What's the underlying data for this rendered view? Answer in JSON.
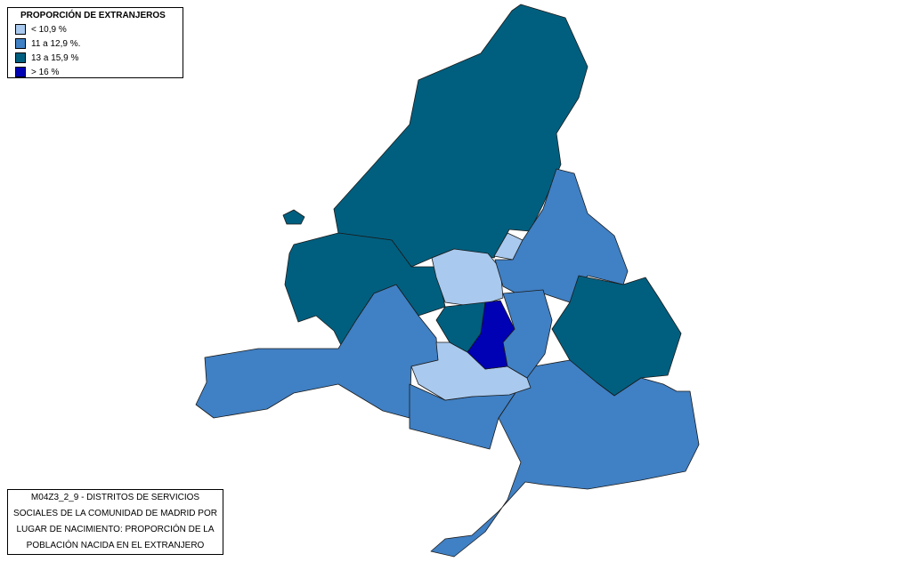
{
  "legend": {
    "title": "PROPORCIÓN DE EXTRANJEROS",
    "items": [
      {
        "label": "< 10,9 %",
        "color": "#a9c9ee"
      },
      {
        "label": "11 a 12,9 %.",
        "color": "#4080c4"
      },
      {
        "label": "13 a 15,9 %",
        "color": "#005f7f"
      },
      {
        "label": "> 16 %",
        "color": "#0000b4"
      }
    ]
  },
  "caption": {
    "lines": [
      "M04Z3_2_9 - DISTRITOS DE SERVICIOS",
      "SOCIALES DE LA COMUNIDAD DE MADRID POR",
      "LUGAR DE NACIMIENTO: PROPORCIÓN DE LA",
      "POBLACIÓN NACIDA EN EL EXTRANJERO"
    ]
  }
}
